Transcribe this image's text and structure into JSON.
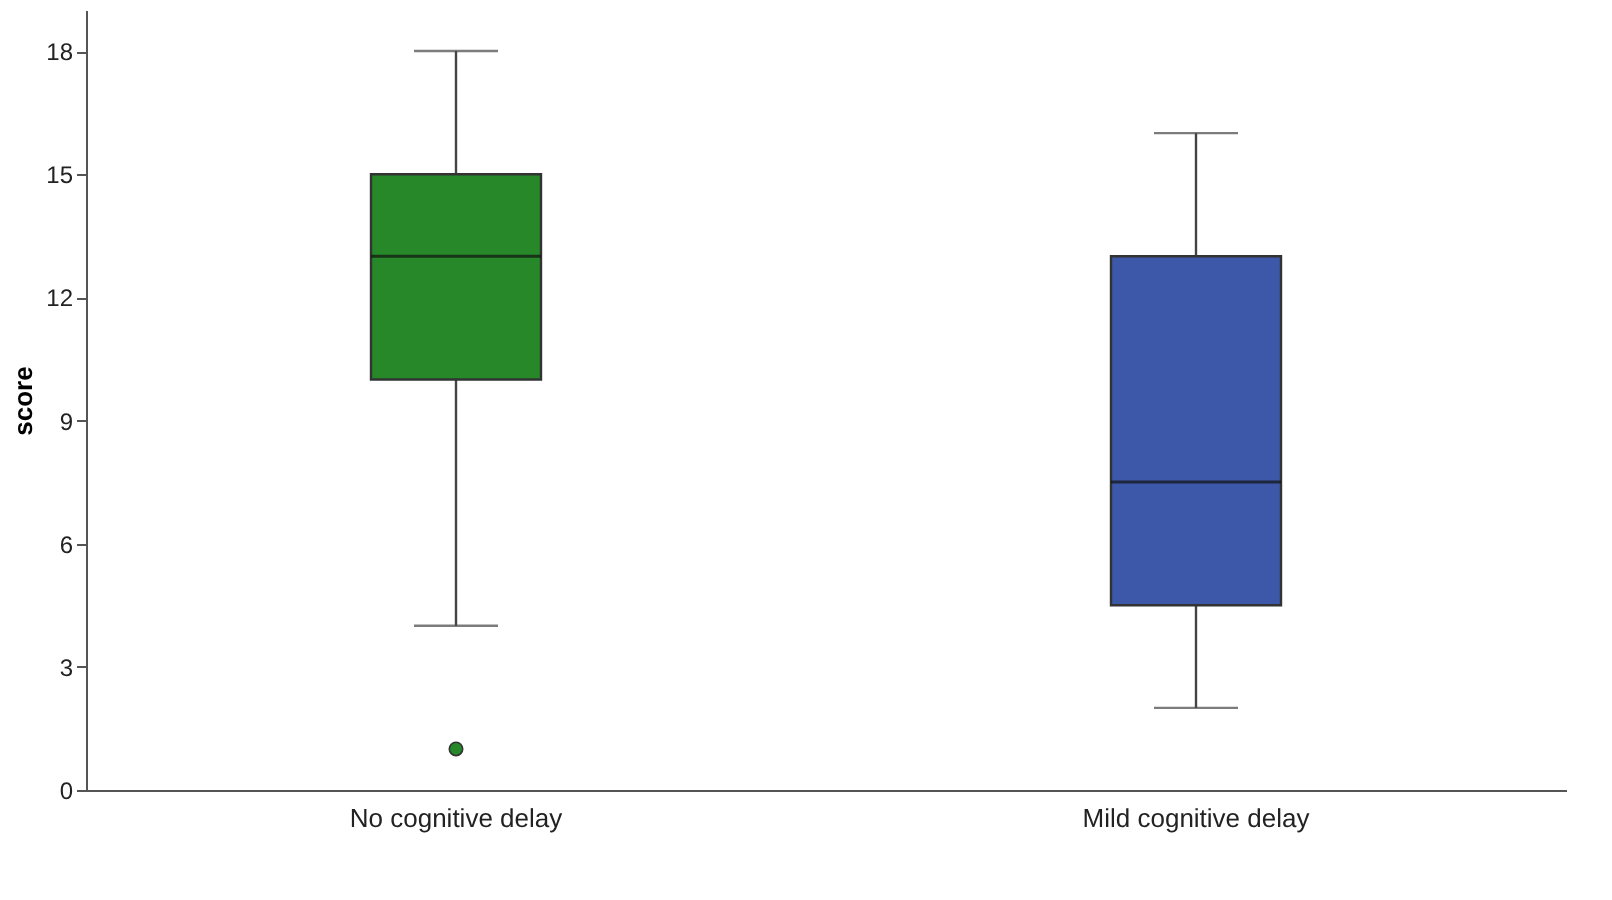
{
  "chart_data": {
    "type": "box",
    "ylabel": "score",
    "categories": [
      "No cognitive delay",
      "Mild cognitive delay"
    ],
    "series": [
      {
        "colors": [
          "#27882a",
          "#3d58a8"
        ],
        "boxes": [
          {
            "low": 4,
            "q1": 10,
            "median": 13,
            "q3": 15,
            "high": 18,
            "outliers": [
              1
            ]
          },
          {
            "low": 2,
            "q1": 4.5,
            "median": 7.5,
            "q3": 13,
            "high": 16
          }
        ]
      }
    ],
    "ylim": [
      0,
      19
    ],
    "yticks": [
      0,
      3,
      6,
      9,
      12,
      15,
      18
    ]
  }
}
